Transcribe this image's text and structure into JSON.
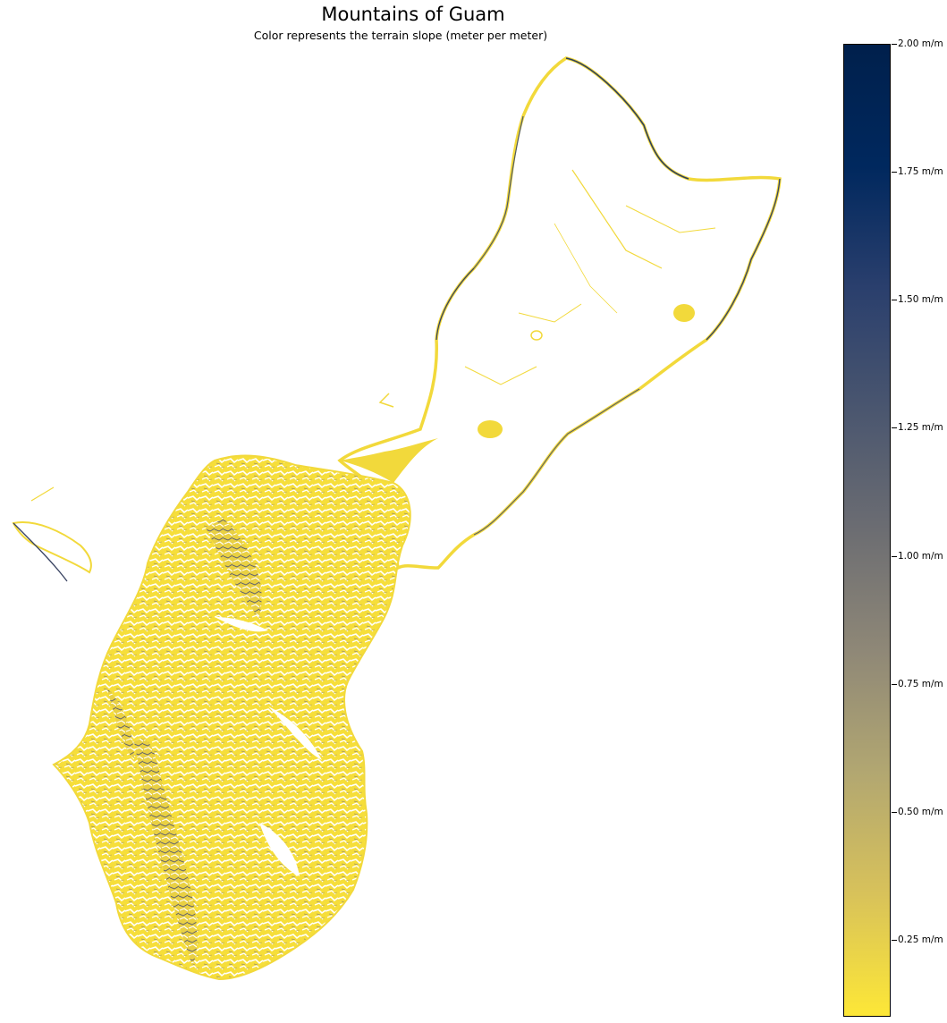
{
  "title": "Mountains of Guam",
  "subtitle": "Color represents the terrain slope (meter per meter)",
  "colorbar": {
    "label_unit": "m/m",
    "min": 0.1,
    "max": 2.0,
    "ticks": [
      {
        "value": 2.0,
        "label": "2.00 m/m"
      },
      {
        "value": 1.75,
        "label": "1.75 m/m"
      },
      {
        "value": 1.5,
        "label": "1.50 m/m"
      },
      {
        "value": 1.25,
        "label": "1.25 m/m"
      },
      {
        "value": 1.0,
        "label": "1.00 m/m"
      },
      {
        "value": 0.75,
        "label": "0.75 m/m"
      },
      {
        "value": 0.5,
        "label": "0.50 m/m"
      },
      {
        "value": 0.25,
        "label": "0.25 m/m"
      }
    ],
    "colors": [
      "#fde737",
      "#d8c25a",
      "#b2a771",
      "#8f8877",
      "#6c6d72",
      "#4a566f",
      "#2a3f6d",
      "#00285e",
      "#00204c"
    ]
  },
  "map": {
    "region": "Guam",
    "colormap": "cividis (reversed)",
    "low_color": "#fde737",
    "high_color": "#00204c"
  }
}
